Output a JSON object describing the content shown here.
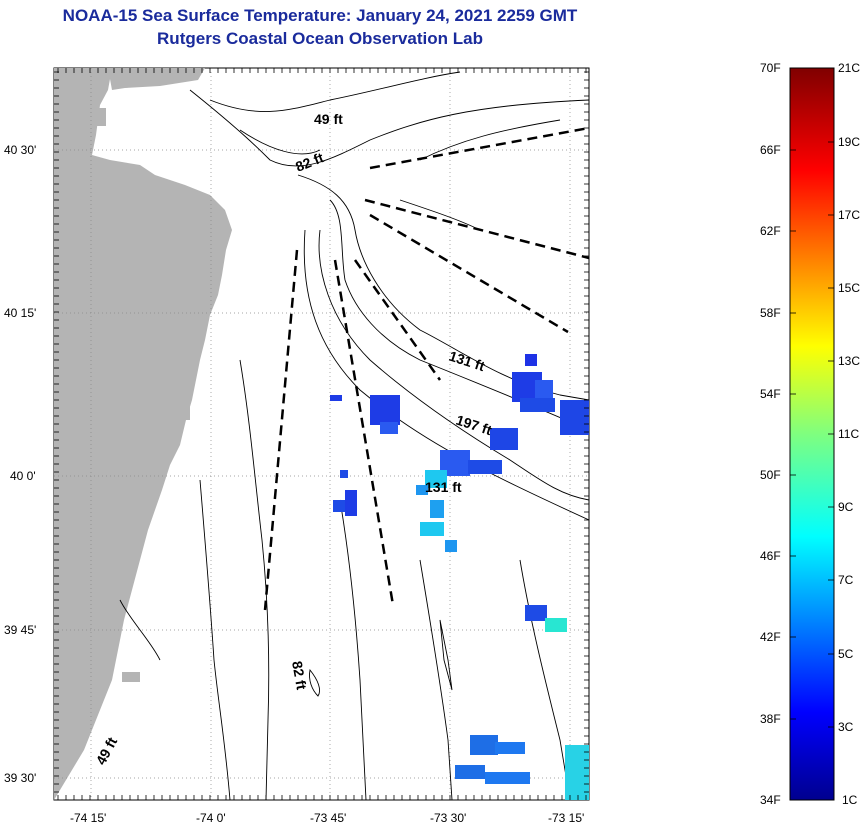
{
  "title": {
    "line1": "NOAA-15 Sea Surface Temperature:  January 24, 2021 2259 GMT",
    "line2": "Rutgers Coastal Ocean Observation Lab"
  },
  "map": {
    "lat_ticks": [
      "40 30'",
      "40 15'",
      "40 0'",
      "39 45'",
      "39 30'"
    ],
    "lon_ticks": [
      "-74 15'",
      "-74 0'",
      "-73 45'",
      "-73 30'",
      "-73 15'"
    ],
    "depth_labels": [
      "49 ft",
      "82 ft",
      "131 ft",
      "197 ft",
      "131 ft",
      "82 ft",
      "49 ft"
    ]
  },
  "colorbar": {
    "fahrenheit": [
      "70F",
      "66F",
      "62F",
      "58F",
      "54F",
      "50F",
      "46F",
      "42F",
      "38F",
      "34F"
    ],
    "celsius": [
      "21C",
      "19C",
      "17C",
      "15C",
      "13C",
      "11C",
      "9C",
      "7C",
      "5C",
      "3C",
      "1C"
    ]
  },
  "colors": {
    "title": "#1a2b9c",
    "land": "#b4b4b4"
  }
}
